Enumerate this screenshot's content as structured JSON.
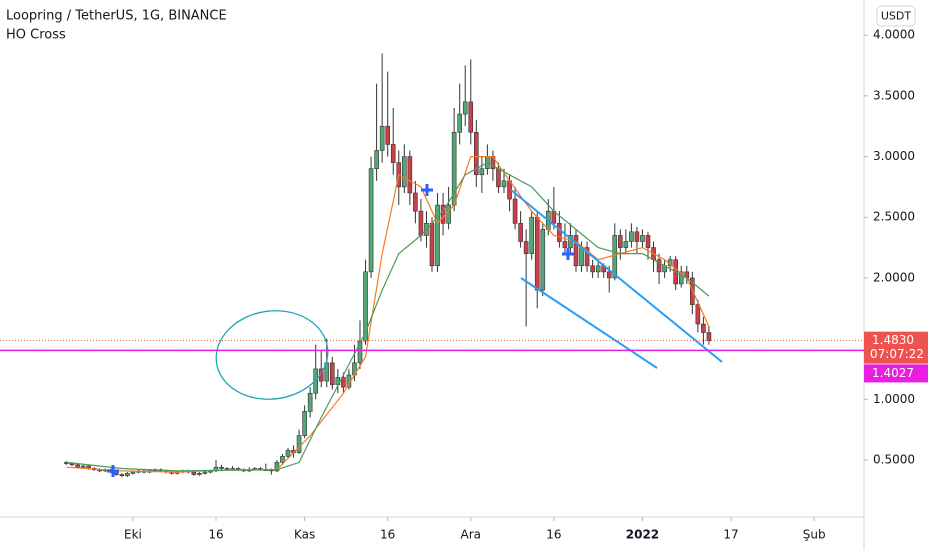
{
  "chart_data": {
    "type": "candlestick",
    "title": "Loopring / TetherUS, 1G, BINANCE",
    "indicator": "HO Cross",
    "currency": "USDT",
    "up_color": "#53a776",
    "down_color": "#c9404a",
    "ylim": [
      0.03,
      4.29
    ],
    "yticks": [
      {
        "value": 0.5,
        "label": "0.5000"
      },
      {
        "value": 1.0,
        "label": "1.0000"
      },
      {
        "value": 1.5,
        "label": "1.5000"
      },
      {
        "value": 2.0,
        "label": "2.0000"
      },
      {
        "value": 2.5,
        "label": "2.5000"
      },
      {
        "value": 3.0,
        "label": "3.0000"
      },
      {
        "value": 3.5,
        "label": "3.5000"
      },
      {
        "value": 4.0,
        "label": "4.0000"
      }
    ],
    "xlim": [
      -12,
      144
    ],
    "xticks": [
      {
        "value": 12,
        "label": "Eki"
      },
      {
        "value": 27,
        "label": "16"
      },
      {
        "value": 43,
        "label": "Kas"
      },
      {
        "value": 58,
        "label": "16"
      },
      {
        "value": 73,
        "label": "Ara"
      },
      {
        "value": 88,
        "label": "16"
      },
      {
        "value": 104,
        "label": "2022"
      },
      {
        "value": 120,
        "label": "17"
      },
      {
        "value": 135,
        "label": "Şub"
      }
    ],
    "ohlc": [
      [
        0.48,
        0.49,
        0.46,
        0.47
      ],
      [
        0.47,
        0.48,
        0.45,
        0.46
      ],
      [
        0.46,
        0.47,
        0.43,
        0.44
      ],
      [
        0.44,
        0.46,
        0.43,
        0.45
      ],
      [
        0.45,
        0.46,
        0.42,
        0.43
      ],
      [
        0.43,
        0.44,
        0.41,
        0.42
      ],
      [
        0.42,
        0.43,
        0.4,
        0.41
      ],
      [
        0.41,
        0.43,
        0.4,
        0.42
      ],
      [
        0.42,
        0.43,
        0.39,
        0.4
      ],
      [
        0.4,
        0.41,
        0.37,
        0.38
      ],
      [
        0.38,
        0.39,
        0.36,
        0.37
      ],
      [
        0.37,
        0.4,
        0.36,
        0.39
      ],
      [
        0.39,
        0.41,
        0.38,
        0.4
      ],
      [
        0.4,
        0.42,
        0.39,
        0.41
      ],
      [
        0.41,
        0.42,
        0.39,
        0.4
      ],
      [
        0.4,
        0.42,
        0.39,
        0.41
      ],
      [
        0.41,
        0.43,
        0.4,
        0.42
      ],
      [
        0.42,
        0.43,
        0.4,
        0.41
      ],
      [
        0.41,
        0.42,
        0.39,
        0.4
      ],
      [
        0.4,
        0.41,
        0.38,
        0.39
      ],
      [
        0.39,
        0.41,
        0.38,
        0.4
      ],
      [
        0.4,
        0.42,
        0.39,
        0.41
      ],
      [
        0.41,
        0.42,
        0.39,
        0.4
      ],
      [
        0.4,
        0.41,
        0.37,
        0.38
      ],
      [
        0.38,
        0.4,
        0.37,
        0.39
      ],
      [
        0.39,
        0.41,
        0.38,
        0.4
      ],
      [
        0.4,
        0.42,
        0.39,
        0.41
      ],
      [
        0.41,
        0.5,
        0.4,
        0.44
      ],
      [
        0.44,
        0.46,
        0.42,
        0.43
      ],
      [
        0.43,
        0.44,
        0.41,
        0.42
      ],
      [
        0.42,
        0.45,
        0.41,
        0.43
      ],
      [
        0.43,
        0.44,
        0.41,
        0.42
      ],
      [
        0.42,
        0.43,
        0.4,
        0.41
      ],
      [
        0.41,
        0.44,
        0.4,
        0.42
      ],
      [
        0.42,
        0.44,
        0.41,
        0.43
      ],
      [
        0.43,
        0.44,
        0.41,
        0.42
      ],
      [
        0.42,
        0.47,
        0.41,
        0.42
      ],
      [
        0.42,
        0.43,
        0.38,
        0.41
      ],
      [
        0.41,
        0.5,
        0.4,
        0.48
      ],
      [
        0.48,
        0.55,
        0.46,
        0.53
      ],
      [
        0.53,
        0.6,
        0.51,
        0.58
      ],
      [
        0.58,
        0.62,
        0.52,
        0.56
      ],
      [
        0.56,
        0.75,
        0.55,
        0.7
      ],
      [
        0.7,
        0.95,
        0.68,
        0.9
      ],
      [
        0.9,
        1.1,
        0.85,
        1.05
      ],
      [
        1.05,
        1.45,
        1.0,
        1.25
      ],
      [
        1.25,
        1.4,
        1.1,
        1.15
      ],
      [
        1.15,
        1.5,
        1.1,
        1.3
      ],
      [
        1.3,
        1.35,
        1.08,
        1.12
      ],
      [
        1.12,
        1.25,
        1.05,
        1.18
      ],
      [
        1.18,
        1.22,
        1.05,
        1.1
      ],
      [
        1.1,
        1.25,
        1.08,
        1.2
      ],
      [
        1.2,
        1.45,
        1.15,
        1.3
      ],
      [
        1.3,
        1.65,
        1.25,
        1.48
      ],
      [
        1.48,
        2.15,
        1.45,
        2.05
      ],
      [
        2.05,
        3.0,
        2.0,
        2.9
      ],
      [
        2.9,
        3.6,
        2.8,
        3.05
      ],
      [
        3.05,
        3.85,
        2.95,
        3.25
      ],
      [
        3.25,
        3.7,
        3.0,
        3.1
      ],
      [
        3.1,
        3.4,
        2.85,
        2.95
      ],
      [
        2.95,
        3.05,
        2.6,
        2.75
      ],
      [
        2.75,
        3.1,
        2.7,
        3.0
      ],
      [
        3.0,
        3.05,
        2.6,
        2.7
      ],
      [
        2.7,
        2.8,
        2.45,
        2.55
      ],
      [
        2.55,
        2.65,
        2.3,
        2.35
      ],
      [
        2.35,
        2.55,
        2.25,
        2.45
      ],
      [
        2.45,
        2.5,
        2.05,
        2.1
      ],
      [
        2.1,
        2.7,
        2.05,
        2.6
      ],
      [
        2.6,
        2.7,
        2.35,
        2.45
      ],
      [
        2.45,
        2.75,
        2.4,
        2.6
      ],
      [
        2.6,
        3.4,
        2.55,
        3.2
      ],
      [
        3.2,
        3.6,
        3.1,
        3.35
      ],
      [
        3.35,
        3.75,
        3.25,
        3.45
      ],
      [
        3.45,
        3.8,
        3.1,
        3.2
      ],
      [
        3.2,
        3.3,
        2.75,
        2.85
      ],
      [
        2.85,
        3.0,
        2.7,
        2.9
      ],
      [
        2.9,
        3.1,
        2.85,
        3.0
      ],
      [
        3.0,
        3.05,
        2.8,
        2.9
      ],
      [
        2.9,
        2.95,
        2.7,
        2.75
      ],
      [
        2.75,
        2.9,
        2.7,
        2.8
      ],
      [
        2.8,
        2.85,
        2.55,
        2.65
      ],
      [
        2.65,
        2.75,
        2.4,
        2.45
      ],
      [
        2.45,
        2.55,
        2.25,
        2.3
      ],
      [
        2.3,
        2.4,
        1.6,
        2.2
      ],
      [
        2.2,
        2.55,
        2.15,
        2.5
      ],
      [
        2.5,
        2.55,
        1.75,
        1.9
      ],
      [
        1.9,
        2.45,
        1.85,
        2.4
      ],
      [
        2.4,
        2.65,
        2.35,
        2.55
      ],
      [
        2.55,
        2.75,
        2.4,
        2.45
      ],
      [
        2.45,
        2.55,
        2.25,
        2.3
      ],
      [
        2.3,
        2.45,
        2.2,
        2.25
      ],
      [
        2.25,
        2.45,
        2.2,
        2.35
      ],
      [
        2.35,
        2.4,
        2.05,
        2.1
      ],
      [
        2.1,
        2.3,
        2.05,
        2.25
      ],
      [
        2.25,
        2.3,
        2.05,
        2.1
      ],
      [
        2.1,
        2.15,
        2.0,
        2.05
      ],
      [
        2.05,
        2.15,
        2.0,
        2.1
      ],
      [
        2.1,
        2.12,
        2.0,
        2.05
      ],
      [
        2.05,
        2.1,
        1.88,
        2.0
      ],
      [
        2.0,
        2.45,
        1.98,
        2.35
      ],
      [
        2.35,
        2.4,
        2.15,
        2.25
      ],
      [
        2.25,
        2.4,
        2.2,
        2.3
      ],
      [
        2.3,
        2.45,
        2.25,
        2.38
      ],
      [
        2.38,
        2.42,
        2.2,
        2.3
      ],
      [
        2.3,
        2.4,
        2.25,
        2.35
      ],
      [
        2.35,
        2.38,
        2.15,
        2.25
      ],
      [
        2.25,
        2.3,
        2.05,
        2.15
      ],
      [
        2.15,
        2.2,
        1.95,
        2.05
      ],
      [
        2.05,
        2.15,
        2.0,
        2.1
      ],
      [
        2.1,
        2.18,
        2.05,
        2.15
      ],
      [
        2.15,
        2.18,
        1.9,
        1.95
      ],
      [
        1.95,
        2.1,
        1.92,
        2.05
      ],
      [
        2.05,
        2.1,
        1.95,
        2.0
      ],
      [
        2.0,
        2.05,
        1.7,
        1.78
      ],
      [
        1.78,
        1.82,
        1.55,
        1.62
      ],
      [
        1.62,
        1.68,
        1.45,
        1.55
      ],
      [
        1.55,
        1.6,
        1.45,
        1.483
      ]
    ],
    "series": [
      {
        "color": "#f57c20",
        "x": [
          0,
          10,
          20,
          30,
          38,
          44,
          50,
          54,
          57,
          60,
          64,
          67,
          70,
          73,
          77,
          80,
          84,
          88,
          92,
          96,
          100,
          104,
          108,
          112,
          116
        ],
        "values": [
          0.44,
          0.41,
          0.4,
          0.42,
          0.42,
          0.7,
          1.05,
          1.35,
          2.2,
          2.85,
          2.75,
          2.45,
          2.6,
          3.0,
          3.0,
          2.8,
          2.55,
          2.35,
          2.3,
          2.15,
          2.2,
          2.25,
          2.15,
          2.0,
          1.6
        ]
      },
      {
        "color": "#4e9a5b",
        "x": [
          0,
          10,
          20,
          38,
          42,
          46,
          50,
          54,
          57,
          60,
          64,
          68,
          72,
          76,
          80,
          84,
          88,
          92,
          96,
          100,
          104,
          108,
          112,
          116
        ],
        "values": [
          0.48,
          0.43,
          0.41,
          0.42,
          0.48,
          0.85,
          1.2,
          1.55,
          1.9,
          2.2,
          2.35,
          2.55,
          2.85,
          2.95,
          2.85,
          2.75,
          2.55,
          2.4,
          2.25,
          2.2,
          2.2,
          2.1,
          2.0,
          1.85
        ]
      }
    ],
    "last_price": {
      "value": 1.483,
      "label": "1.4830",
      "color": "#ef5350"
    },
    "countdown": "07:07:22",
    "horizontal_line": {
      "value": 1.4027,
      "label": "1.4027",
      "color": "#e91ee0"
    }
  }
}
